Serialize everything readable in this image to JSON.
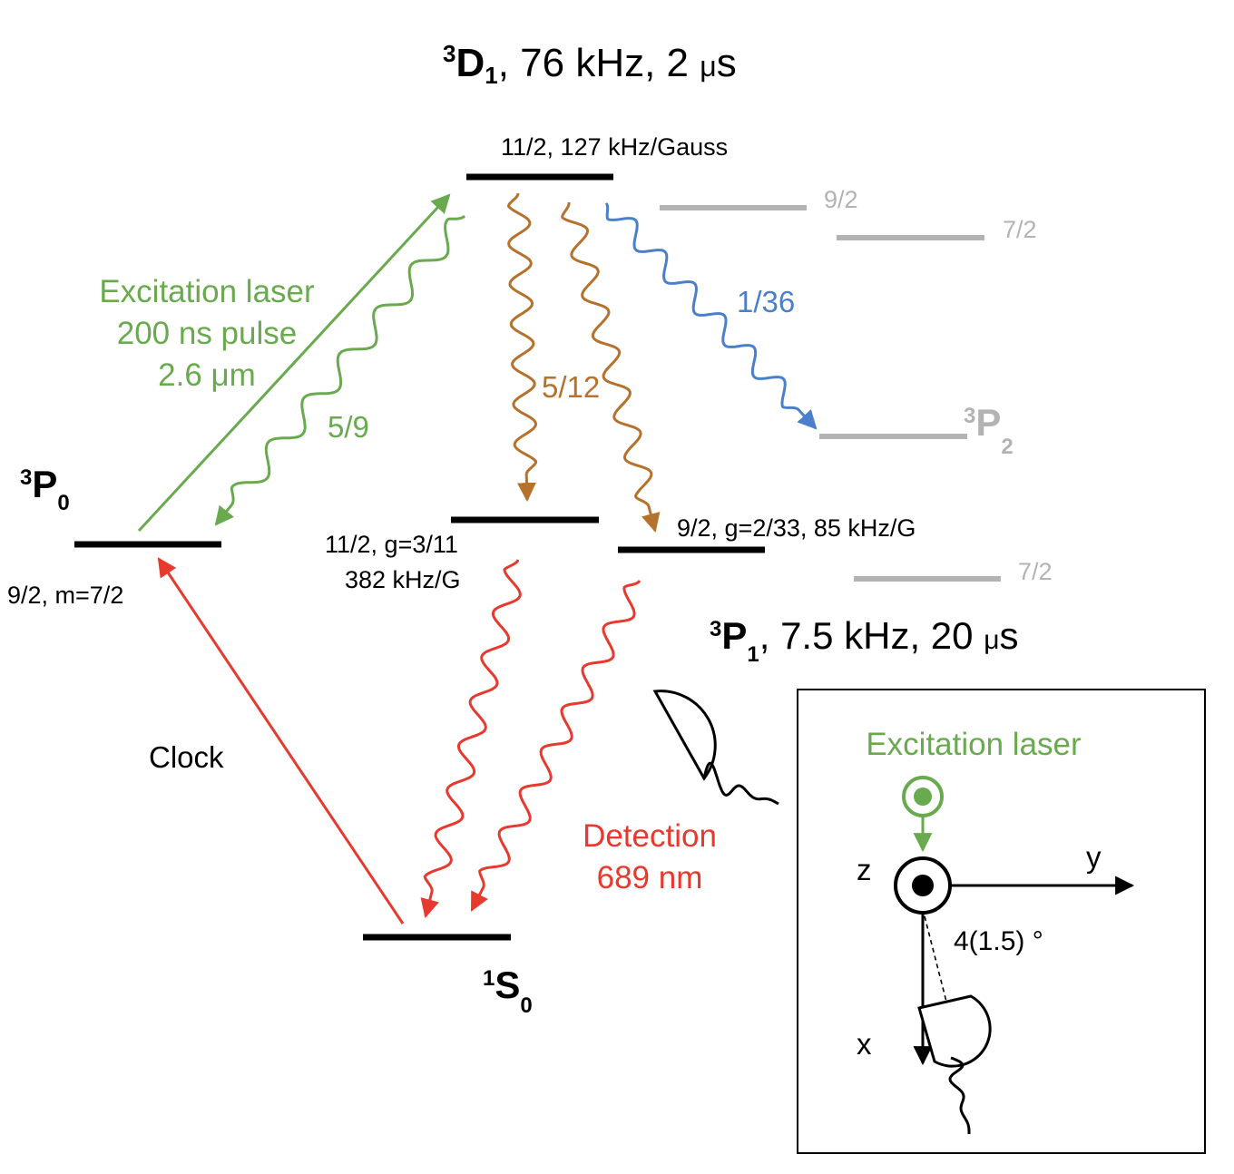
{
  "colors": {
    "black": "#000000",
    "green": "#6aaa4e",
    "orange": "#b5722c",
    "blue": "#4a7fcc",
    "red": "#e8392e",
    "gray": "#b3b3b3"
  },
  "d1": {
    "label": {
      "sup": "3",
      "main": "D",
      "sub": "1",
      "rest": ", 76 kHz, 2 ",
      "mu": "μ",
      "unit": "s"
    },
    "f112_label": "11/2, 127 kHz/Gauss",
    "f92_label": "9/2",
    "f72_label": "7/2"
  },
  "p0": {
    "label": {
      "sup": "3",
      "main": "P",
      "sub": "0"
    },
    "level_label": "9/2, m=7/2"
  },
  "p1": {
    "label": {
      "sup": "3",
      "main": "P",
      "sub": "1",
      "rest": ", 7.5 kHz, 20 ",
      "mu": "μ",
      "unit": "s"
    },
    "f112_label_line1": "11/2, g=3/11",
    "f112_label_line2": "382 kHz/G",
    "f92_label": "9/2, g=2/33, 85 kHz/G",
    "f72_label": "7/2"
  },
  "p2": {
    "label": {
      "sup": "3",
      "main": "P",
      "sub": "2"
    }
  },
  "s0": {
    "label": {
      "sup": "1",
      "main": "S",
      "sub": "0"
    }
  },
  "arrows": {
    "excitation_line1": "Excitation laser",
    "excitation_line2": "200 ns pulse",
    "excitation_line3": "2.6 μm",
    "branch_p0": "5/9",
    "branch_p1": "5/12",
    "branch_p2": "1/36",
    "clock": "Clock",
    "detection_line1": "Detection",
    "detection_line2": "689 nm"
  },
  "inset": {
    "excitation_label": "Excitation laser",
    "axis_z": "z",
    "axis_y": "y",
    "axis_x": "x",
    "angle_label": "4(1.5) °"
  }
}
